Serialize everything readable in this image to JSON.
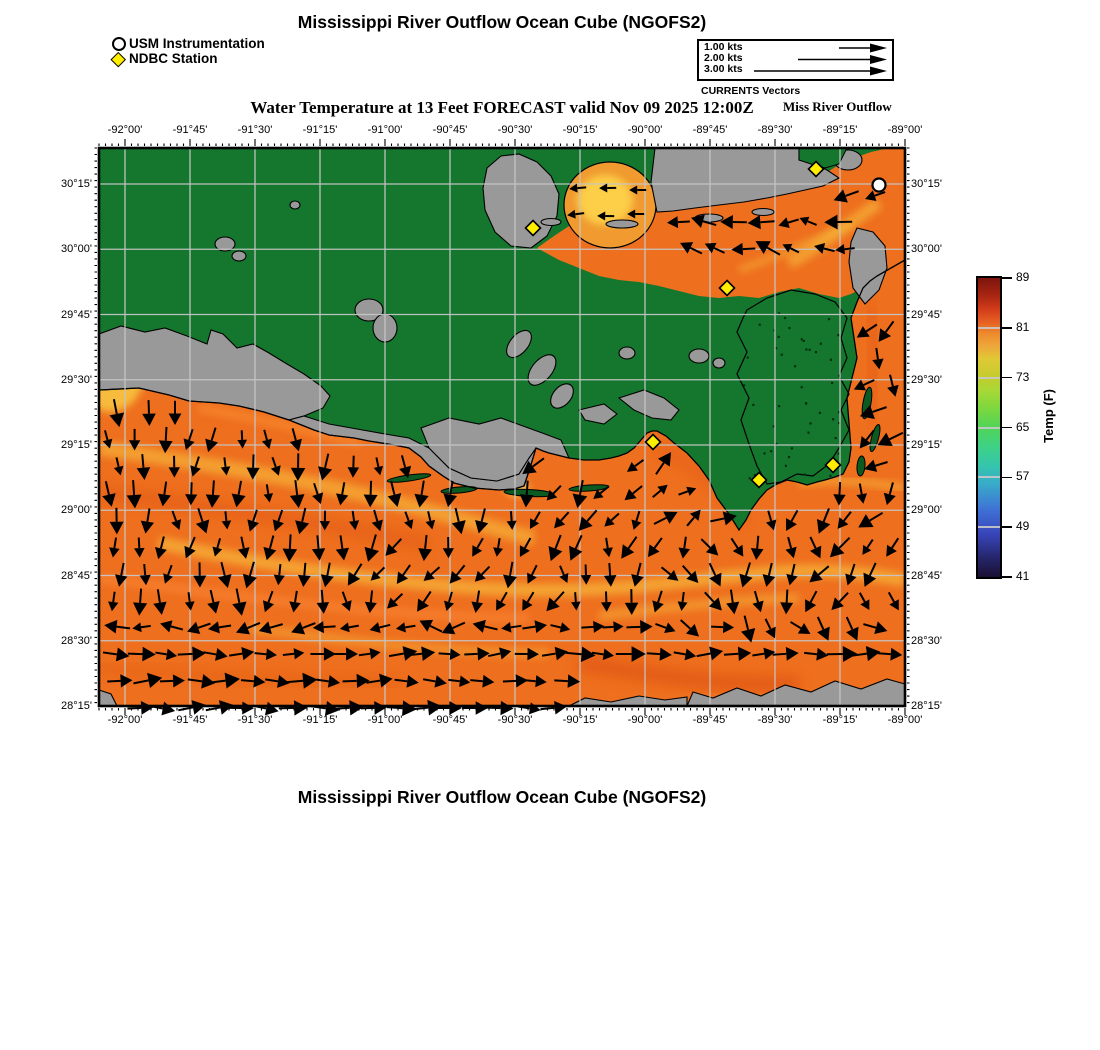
{
  "title": "Mississippi River Outflow Ocean Cube (NGOFS2)",
  "bottom_title": "Mississippi River Outflow Ocean Cube (NGOFS2)",
  "subtitle": "Water Temperature at 13 Feet FORECAST valid Nov 09 2025 12:00Z",
  "region_label": "Miss River Outflow",
  "marker_legend": {
    "usm": "USM Instrumentation",
    "ndbc": "NDBC Station"
  },
  "vector_legend": {
    "title": "CURRENTS Vectors",
    "speeds": [
      "1.00 kts",
      "2.00 kts",
      "3.00 kts"
    ]
  },
  "axes": {
    "x_ticks": [
      "-92°00'",
      "-91°45'",
      "-91°30'",
      "-91°15'",
      "-91°00'",
      "-90°45'",
      "-90°30'",
      "-90°15'",
      "-90°00'",
      "-89°45'",
      "-89°30'",
      "-89°15'",
      "-89°00'"
    ],
    "y_ticks": [
      "30°15'",
      "30°00'",
      "29°45'",
      "29°30'",
      "29°15'",
      "29°00'",
      "28°45'",
      "28°30'",
      "28°15'"
    ]
  },
  "colorbar": {
    "label": "Temp (F)",
    "min": 41,
    "max": 89,
    "ticks": [
      89,
      81,
      73,
      65,
      57,
      49,
      41
    ],
    "stops": [
      {
        "v": 41,
        "c": "#1b1033"
      },
      {
        "v": 44,
        "c": "#25256a"
      },
      {
        "v": 48,
        "c": "#3846bb"
      },
      {
        "v": 52,
        "c": "#3f74d6"
      },
      {
        "v": 56,
        "c": "#38acc9"
      },
      {
        "v": 59,
        "c": "#35c6ab"
      },
      {
        "v": 62,
        "c": "#3fd284"
      },
      {
        "v": 65,
        "c": "#50d458"
      },
      {
        "v": 68,
        "c": "#7cd83e"
      },
      {
        "v": 71,
        "c": "#a8d836"
      },
      {
        "v": 73,
        "c": "#c3cd2e"
      },
      {
        "v": 76,
        "c": "#e0c935"
      },
      {
        "v": 78,
        "c": "#eda83a"
      },
      {
        "v": 80,
        "c": "#ef8b2e"
      },
      {
        "v": 82,
        "c": "#e55f22"
      },
      {
        "v": 84,
        "c": "#d23c1a"
      },
      {
        "v": 86,
        "c": "#ab2712"
      },
      {
        "v": 89,
        "c": "#7c140e"
      }
    ]
  },
  "map": {
    "colors": {
      "outside_domain_green": "#15772e",
      "model_land_gray": "#999999",
      "water_orange": "#ee6f1e",
      "warm_streak_yellow": "#f9cf45",
      "cool_plume_dark": "#d84a10",
      "gridline": "#c6c6c6",
      "vector_black": "#000000",
      "ndbc_yellow": "#ffee00",
      "usm_white": "#ffffff"
    },
    "stations": [
      {
        "kind": "ndbc",
        "xf": 0.538,
        "yf": 0.143
      },
      {
        "kind": "ndbc",
        "xf": 0.889,
        "yf": 0.038
      },
      {
        "kind": "ndbc",
        "xf": 0.779,
        "yf": 0.251
      },
      {
        "kind": "ndbc",
        "xf": 0.687,
        "yf": 0.527
      },
      {
        "kind": "ndbc",
        "xf": 0.819,
        "yf": 0.595
      },
      {
        "kind": "ndbc",
        "xf": 0.911,
        "yf": 0.568
      },
      {
        "kind": "usm",
        "xf": 0.968,
        "yf": 0.066
      }
    ]
  }
}
